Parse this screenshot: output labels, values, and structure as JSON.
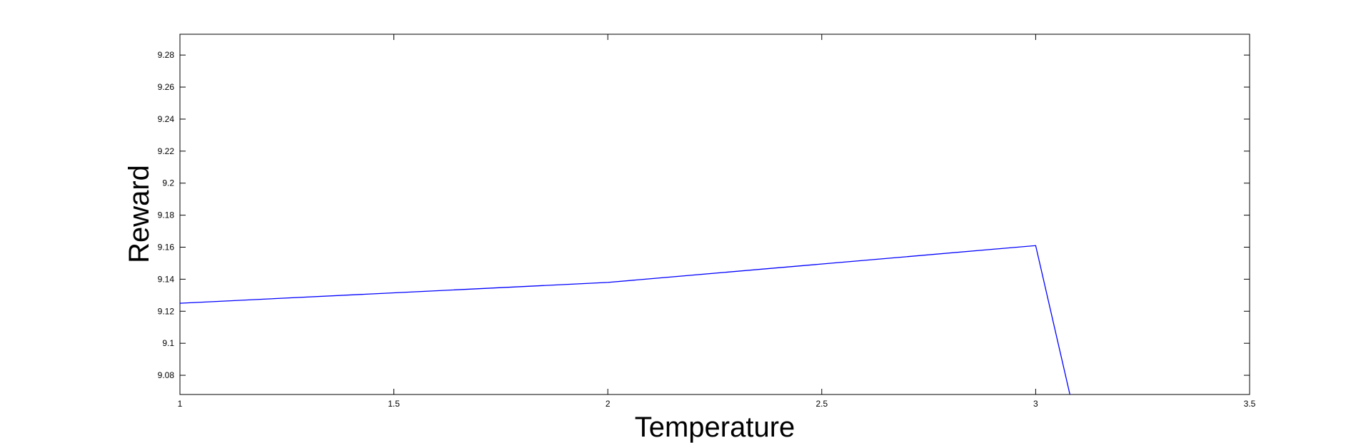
{
  "chart_data": {
    "type": "line",
    "title": "",
    "xlabel": "Temperature",
    "ylabel": "Reward",
    "xlim": [
      1,
      3.5
    ],
    "ylim": [
      9.068,
      9.293
    ],
    "x_ticks": [
      1,
      1.5,
      2,
      2.5,
      3,
      3.5
    ],
    "x_tick_labels": [
      "1",
      "1.5",
      "2",
      "2.5",
      "3",
      "3.5"
    ],
    "y_ticks": [
      9.08,
      9.1,
      9.12,
      9.14,
      9.16,
      9.18,
      9.2,
      9.22,
      9.24,
      9.26,
      9.28
    ],
    "y_tick_labels": [
      "9.08",
      "9.1",
      "9.12",
      "9.14",
      "9.16",
      "9.18",
      "9.2",
      "9.22",
      "9.24",
      "9.26",
      "9.28"
    ],
    "grid": false,
    "series": [
      {
        "color": "#0000ff",
        "x": [
          1,
          2,
          3,
          3.08
        ],
        "y": [
          9.125,
          9.138,
          9.161,
          9.068
        ]
      }
    ]
  }
}
